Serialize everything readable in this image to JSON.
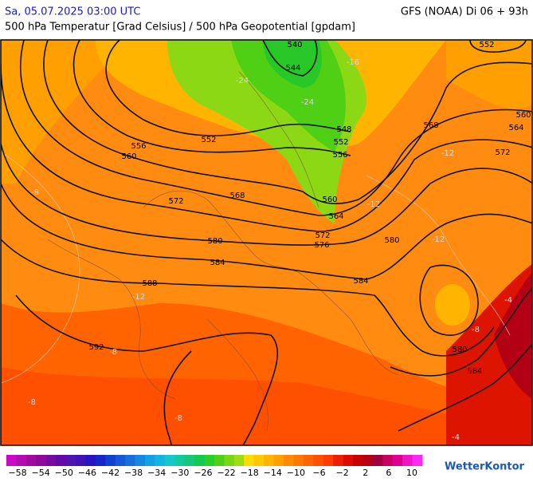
{
  "header": {
    "datetime": "Sa, 05.07.2025 03:00 UTC",
    "model": "GFS (NOAA) Di 06 + 93h",
    "subtitle": "500 hPa Temperatur [Grad Celsius] / 500 hPa Geopotential [gpdam]"
  },
  "contour_labels": [
    "540",
    "544",
    "552",
    "548",
    "552",
    "556",
    "560",
    "564",
    "568",
    "572",
    "560",
    "564",
    "552",
    "556",
    "560",
    "568",
    "572",
    "580",
    "572",
    "576",
    "580",
    "584",
    "584",
    "588",
    "592",
    "580",
    "584"
  ],
  "temperature_labels": [
    "-24",
    "-24",
    "-16",
    "-8",
    "-12",
    "-8",
    "-8",
    "-8",
    "-4",
    "-12",
    "-12",
    "-12",
    "-8",
    "-4"
  ],
  "legend": {
    "labels": [
      "−58",
      "−54",
      "−50",
      "−46",
      "−42",
      "−38",
      "−34",
      "−30",
      "−26",
      "−22",
      "−18",
      "−14",
      "−10",
      "−6",
      "−2",
      "2",
      "6",
      "10"
    ],
    "colors": [
      "#c80ac8",
      "#b40ab4",
      "#a00aa0",
      "#8c0a9c",
      "#780aa0",
      "#640aa8",
      "#5014b0",
      "#3c14b8",
      "#2814c0",
      "#1428c8",
      "#1440d0",
      "#1458d8",
      "#1470dc",
      "#1488e0",
      "#14a0e4",
      "#14b4e0",
      "#14c8c8",
      "#14c8a0",
      "#14c878",
      "#14c850",
      "#28d028",
      "#50d014",
      "#78d814",
      "#a0dc14",
      "#ffdc00",
      "#ffc800",
      "#ffb400",
      "#ffa000",
      "#ff8c00",
      "#ff7800",
      "#ff6400",
      "#ff5000",
      "#ff3c00",
      "#f01e00",
      "#dc0a00",
      "#c80000",
      "#b40014",
      "#a0003c",
      "#c80064",
      "#e00090",
      "#f014c8",
      "#ff28f0"
    ]
  },
  "logo": "WetterKontor"
}
